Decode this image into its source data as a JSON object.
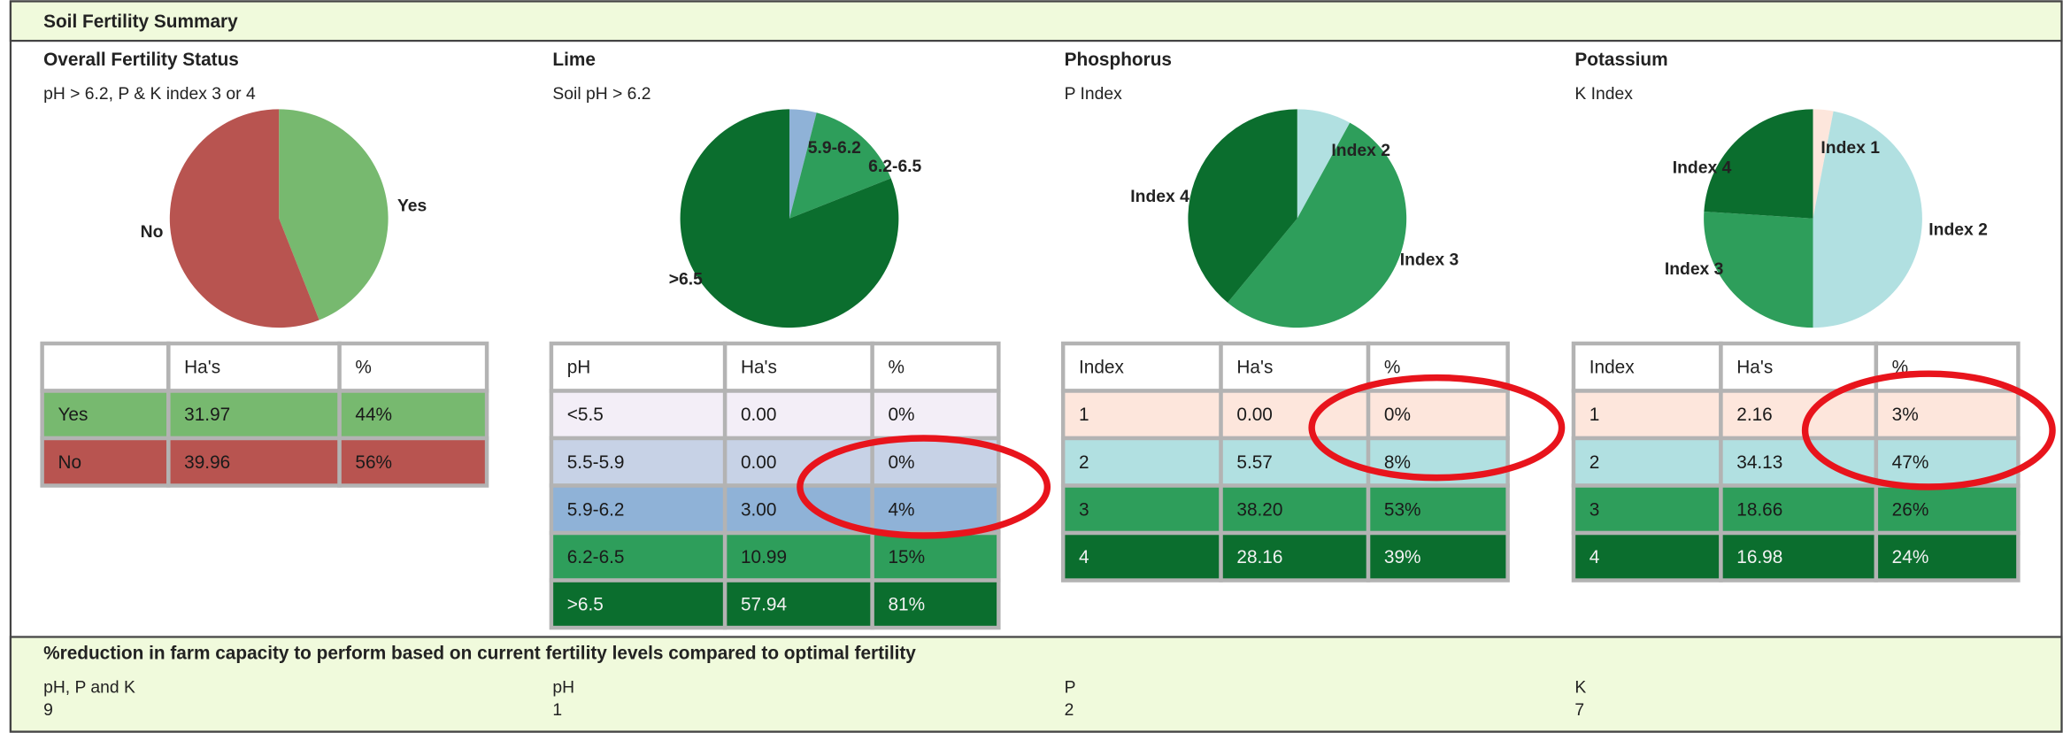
{
  "header": {
    "title": "Soil Fertility Summary"
  },
  "panels": [
    {
      "title": "Overall Fertility Status",
      "subtitle": "pH > 6.2, P & K index 3 or 4",
      "columns": [
        "Ha's",
        "%"
      ],
      "row_labels": [
        "Yes",
        "No"
      ],
      "ha": [
        "31.97",
        "39.96"
      ],
      "percent": [
        44,
        56
      ],
      "percent_labels": [
        "44%",
        "56%"
      ],
      "colors": [
        "#77b96f",
        "#b85450"
      ],
      "pie_labels": [
        "Yes",
        "No"
      ]
    },
    {
      "title": "Lime",
      "subtitle": "Soil pH > 6.2",
      "columns": [
        "pH",
        "Ha's",
        "%"
      ],
      "row_labels": [
        "<5.5",
        "5.5-5.9",
        "5.9-6.2",
        "6.2-6.5",
        ">6.5"
      ],
      "ha": [
        "0.00",
        "0.00",
        "3.00",
        "10.99",
        "57.94"
      ],
      "percent": [
        0,
        0,
        4,
        15,
        81
      ],
      "percent_labels": [
        "0%",
        "0%",
        "4%",
        "15%",
        "81%"
      ],
      "colors": [
        "#f3eef7",
        "#c7d2e6",
        "#8fb2d7",
        "#2e9e5b",
        "#0b6e2e"
      ],
      "pie_labels": [
        null,
        null,
        "5.9-6.2",
        "6.2-6.5",
        ">6.5"
      ]
    },
    {
      "title": "Phosphorus",
      "subtitle": "P Index",
      "columns": [
        "Index",
        "Ha's",
        "%"
      ],
      "row_labels": [
        "1",
        "2",
        "3",
        "4"
      ],
      "ha": [
        "0.00",
        "5.57",
        "38.20",
        "28.16"
      ],
      "percent": [
        0,
        8,
        53,
        39
      ],
      "percent_labels": [
        "0%",
        "8%",
        "53%",
        "39%"
      ],
      "colors": [
        "#fde6dc",
        "#b1e0e1",
        "#2e9e5b",
        "#0b6e2e"
      ],
      "pie_labels": [
        null,
        "Index 2",
        "Index 3",
        "Index 4"
      ]
    },
    {
      "title": "Potassium",
      "subtitle": "K Index",
      "columns": [
        "Index",
        "Ha's",
        "%"
      ],
      "row_labels": [
        "1",
        "2",
        "3",
        "4"
      ],
      "ha": [
        "2.16",
        "34.13",
        "18.66",
        "16.98"
      ],
      "percent": [
        3,
        47,
        26,
        24
      ],
      "percent_labels": [
        "3%",
        "47%",
        "26%",
        "24%"
      ],
      "colors": [
        "#fde6dc",
        "#b1e0e1",
        "#2e9e5b",
        "#0b6e2e"
      ],
      "pie_labels": [
        "Index 1",
        "Index 2",
        "Index 3",
        "Index 4"
      ]
    }
  ],
  "footer": {
    "title": "%reduction in farm capacity to perform based on current fertility levels compared to optimal fertility",
    "items": [
      {
        "label": "pH, P and K",
        "value": 9
      },
      {
        "label": "pH",
        "value": 1
      },
      {
        "label": "P",
        "value": 2
      },
      {
        "label": "K",
        "value": 7
      }
    ]
  }
}
